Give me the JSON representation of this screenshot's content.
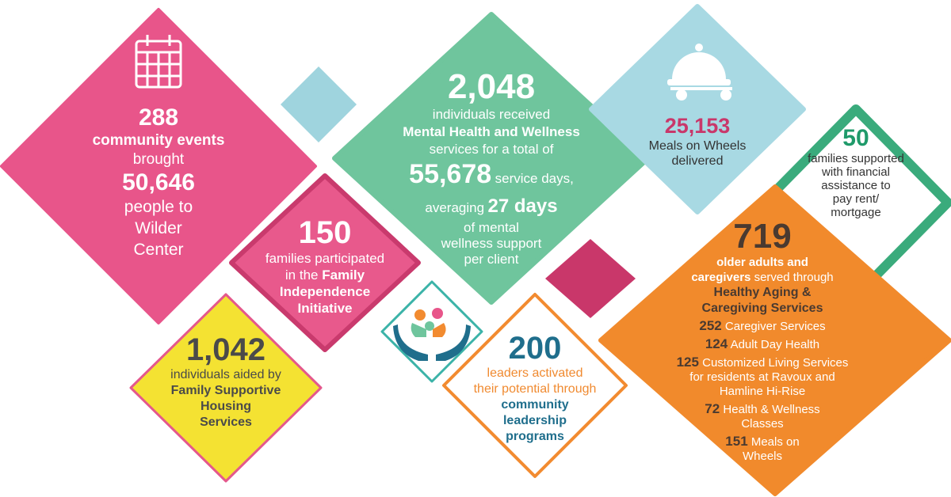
{
  "events": {
    "count": "288",
    "label": "community events",
    "verb": "brought",
    "people": "50,646",
    "rest": [
      "people to",
      "Wilder",
      "Center"
    ]
  },
  "mental": {
    "count": "2,048",
    "line1": "individuals received",
    "program": "Mental Health and Wellness",
    "line2": "services for a total of",
    "days": "55,678",
    "days_label": "service days,",
    "averaging": "averaging",
    "average": "27 days",
    "rest": [
      "of mental",
      "wellness support",
      "per client"
    ]
  },
  "family": {
    "count": "150",
    "line1": "families participated",
    "line2": "in the",
    "program": [
      "Family",
      "Independence",
      "Initiative"
    ]
  },
  "housing": {
    "count": "1,042",
    "line": "individuals aided by",
    "program": [
      "Family Supportive",
      "Housing",
      "Services"
    ]
  },
  "leaders": {
    "count": "200",
    "lines": [
      "leaders activated",
      "their potential through"
    ],
    "program": [
      "community",
      "leadership",
      "programs"
    ]
  },
  "meals": {
    "count": "25,153",
    "lines": [
      "Meals on Wheels",
      "delivered"
    ]
  },
  "rent": {
    "count": "50",
    "lines": [
      "families supported",
      "with financial",
      "assistance to",
      "pay rent/",
      "mortgage"
    ]
  },
  "aging": {
    "count": "719",
    "line1": "older adults and",
    "line2_bold": "caregivers",
    "line2": "served through",
    "program": [
      "Healthy Aging &",
      "Caregiving Services"
    ],
    "items": [
      {
        "count": "252",
        "lines": [
          "Caregiver Services"
        ]
      },
      {
        "count": "124",
        "lines": [
          "Adult Day Health"
        ]
      },
      {
        "count": "125",
        "lines": [
          "Customized Living Services",
          "for residents at Ravoux and",
          "Hamline Hi-Rise"
        ]
      },
      {
        "count": "72",
        "lines": [
          "Health & Wellness",
          "Classes"
        ]
      },
      {
        "count": "151",
        "lines": [
          "Meals on",
          "Wheels"
        ]
      }
    ]
  }
}
